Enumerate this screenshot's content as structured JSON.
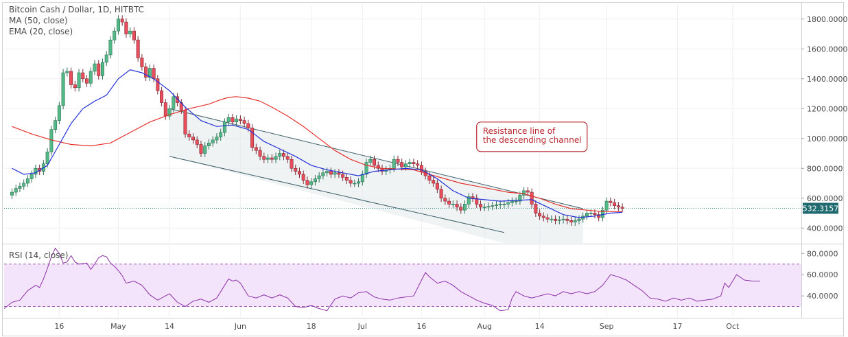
{
  "chart_data": [
    {
      "type": "candlestick",
      "title": "Bitcoin Cash / Dollar, 1D, HITBTC",
      "indicators": [
        "MA (50, close)",
        "EMA (20, close)"
      ],
      "ylim": [
        300,
        1900
      ],
      "yticks": [
        "1800.0000",
        "1600.0000",
        "1400.0000",
        "1200.0000",
        "1000.0000",
        "800.0000",
        "600.0000",
        "400.0000"
      ],
      "ytick_values": [
        1800,
        1600,
        1400,
        1200,
        1000,
        800,
        600,
        400
      ],
      "last_price_label": "532.3157",
      "last_price": 532.3157,
      "annotation": [
        "Resistance line of",
        "the descending channel"
      ],
      "colors": {
        "up": "#53b987",
        "down": "#eb4d5c",
        "ma50": "#e5312c",
        "ema20": "#2330d6",
        "channel": "#3d5e68",
        "annotation": "#b8292f"
      },
      "xlabels": [
        "16",
        "May",
        "14",
        "Jun",
        "18",
        "Jul",
        "16",
        "Aug",
        "14",
        "Sep",
        "17",
        "Oct"
      ],
      "xlabel_days": [
        14,
        29,
        42,
        60,
        78,
        91,
        106,
        122,
        136,
        153,
        171,
        185
      ],
      "candles": [
        [
          0,
          640
        ],
        [
          1,
          665
        ],
        [
          2,
          680
        ],
        [
          3,
          700
        ],
        [
          4,
          730
        ],
        [
          5,
          760
        ],
        [
          6,
          800
        ],
        [
          7,
          780
        ],
        [
          8,
          830
        ],
        [
          9,
          910
        ],
        [
          10,
          1060
        ],
        [
          11,
          1120
        ],
        [
          12,
          1220
        ],
        [
          13,
          1440
        ],
        [
          14,
          1450
        ],
        [
          15,
          1360
        ],
        [
          16,
          1340
        ],
        [
          17,
          1440
        ],
        [
          18,
          1400
        ],
        [
          19,
          1370
        ],
        [
          20,
          1450
        ],
        [
          21,
          1500
        ],
        [
          22,
          1420
        ],
        [
          23,
          1510
        ],
        [
          24,
          1560
        ],
        [
          25,
          1660
        ],
        [
          26,
          1720
        ],
        [
          27,
          1800
        ],
        [
          28,
          1780
        ],
        [
          29,
          1700
        ],
        [
          30,
          1720
        ],
        [
          31,
          1660
        ],
        [
          32,
          1540
        ],
        [
          33,
          1480
        ],
        [
          34,
          1410
        ],
        [
          35,
          1470
        ],
        [
          36,
          1400
        ],
        [
          37,
          1320
        ],
        [
          38,
          1240
        ],
        [
          39,
          1150
        ],
        [
          40,
          1200
        ],
        [
          41,
          1280
        ],
        [
          42,
          1240
        ],
        [
          43,
          1190
        ],
        [
          44,
          1030
        ],
        [
          45,
          1010
        ],
        [
          46,
          990
        ],
        [
          47,
          960
        ],
        [
          48,
          900
        ],
        [
          49,
          950
        ],
        [
          50,
          970
        ],
        [
          51,
          990
        ],
        [
          52,
          1010
        ],
        [
          53,
          1040
        ],
        [
          54,
          1110
        ],
        [
          55,
          1140
        ],
        [
          56,
          1110
        ],
        [
          57,
          1130
        ],
        [
          58,
          1120
        ],
        [
          59,
          1100
        ],
        [
          60,
          1070
        ],
        [
          61,
          940
        ],
        [
          62,
          920
        ],
        [
          63,
          880
        ],
        [
          64,
          860
        ],
        [
          65,
          870
        ],
        [
          66,
          860
        ],
        [
          67,
          880
        ],
        [
          68,
          900
        ],
        [
          69,
          880
        ],
        [
          70,
          860
        ],
        [
          71,
          800
        ],
        [
          72,
          780
        ],
        [
          73,
          760
        ],
        [
          74,
          720
        ],
        [
          75,
          690
        ],
        [
          76,
          710
        ],
        [
          77,
          730
        ],
        [
          78,
          750
        ],
        [
          79,
          770
        ],
        [
          80,
          780
        ],
        [
          81,
          760
        ],
        [
          82,
          770
        ],
        [
          83,
          760
        ],
        [
          84,
          740
        ],
        [
          85,
          720
        ],
        [
          86,
          700
        ],
        [
          87,
          700
        ],
        [
          88,
          710
        ],
        [
          89,
          760
        ],
        [
          90,
          840
        ],
        [
          91,
          860
        ],
        [
          92,
          820
        ],
        [
          93,
          800
        ],
        [
          94,
          780
        ],
        [
          95,
          790
        ],
        [
          96,
          800
        ],
        [
          97,
          860
        ],
        [
          98,
          840
        ],
        [
          99,
          810
        ],
        [
          100,
          830
        ],
        [
          101,
          840
        ],
        [
          102,
          830
        ],
        [
          103,
          820
        ],
        [
          104,
          780
        ],
        [
          105,
          750
        ],
        [
          106,
          720
        ],
        [
          107,
          700
        ],
        [
          108,
          660
        ],
        [
          109,
          600
        ],
        [
          110,
          580
        ],
        [
          111,
          560
        ],
        [
          112,
          560
        ],
        [
          113,
          540
        ],
        [
          114,
          520
        ],
        [
          115,
          560
        ],
        [
          116,
          610
        ],
        [
          117,
          600
        ],
        [
          118,
          560
        ],
        [
          119,
          540
        ],
        [
          120,
          540
        ],
        [
          121,
          545
        ],
        [
          122,
          550
        ],
        [
          123,
          555
        ],
        [
          124,
          560
        ],
        [
          125,
          560
        ],
        [
          126,
          570
        ],
        [
          127,
          580
        ],
        [
          128,
          580
        ],
        [
          129,
          620
        ],
        [
          130,
          650
        ],
        [
          131,
          640
        ],
        [
          132,
          560
        ],
        [
          133,
          500
        ],
        [
          134,
          480
        ],
        [
          135,
          470
        ],
        [
          136,
          460
        ],
        [
          137,
          460
        ],
        [
          138,
          450
        ],
        [
          139,
          455
        ],
        [
          140,
          460
        ],
        [
          141,
          450
        ],
        [
          142,
          440
        ],
        [
          143,
          450
        ],
        [
          144,
          460
        ],
        [
          145,
          480
        ],
        [
          146,
          500
        ],
        [
          147,
          500
        ],
        [
          148,
          490
        ],
        [
          149,
          470
        ],
        [
          150,
          520
        ],
        [
          151,
          580
        ],
        [
          152,
          570
        ],
        [
          153,
          550
        ],
        [
          154,
          540
        ],
        [
          155,
          532
        ]
      ],
      "ma50": [
        [
          0,
          1080
        ],
        [
          5,
          1030
        ],
        [
          10,
          990
        ],
        [
          15,
          960
        ],
        [
          20,
          950
        ],
        [
          25,
          970
        ],
        [
          30,
          1040
        ],
        [
          35,
          1110
        ],
        [
          40,
          1160
        ],
        [
          45,
          1200
        ],
        [
          50,
          1230
        ],
        [
          53,
          1260
        ],
        [
          55,
          1275
        ],
        [
          57,
          1280
        ],
        [
          60,
          1270
        ],
        [
          63,
          1250
        ],
        [
          66,
          1210
        ],
        [
          70,
          1150
        ],
        [
          74,
          1080
        ],
        [
          78,
          1000
        ],
        [
          82,
          920
        ],
        [
          86,
          860
        ],
        [
          90,
          820
        ],
        [
          94,
          800
        ],
        [
          98,
          795
        ],
        [
          102,
          790
        ],
        [
          106,
          760
        ],
        [
          110,
          730
        ],
        [
          114,
          700
        ],
        [
          118,
          680
        ],
        [
          122,
          660
        ],
        [
          126,
          640
        ],
        [
          130,
          630
        ],
        [
          134,
          600
        ],
        [
          138,
          560
        ],
        [
          142,
          530
        ],
        [
          146,
          520
        ],
        [
          150,
          510
        ],
        [
          155,
          510
        ]
      ],
      "ema20": [
        [
          0,
          800
        ],
        [
          3,
          760
        ],
        [
          6,
          770
        ],
        [
          9,
          820
        ],
        [
          12,
          960
        ],
        [
          15,
          1100
        ],
        [
          18,
          1200
        ],
        [
          21,
          1250
        ],
        [
          24,
          1290
        ],
        [
          27,
          1400
        ],
        [
          30,
          1460
        ],
        [
          33,
          1440
        ],
        [
          36,
          1400
        ],
        [
          40,
          1320
        ],
        [
          44,
          1210
        ],
        [
          48,
          1120
        ],
        [
          52,
          1080
        ],
        [
          56,
          1090
        ],
        [
          60,
          1060
        ],
        [
          64,
          980
        ],
        [
          68,
          930
        ],
        [
          72,
          880
        ],
        [
          76,
          820
        ],
        [
          80,
          790
        ],
        [
          84,
          770
        ],
        [
          88,
          750
        ],
        [
          92,
          780
        ],
        [
          96,
          790
        ],
        [
          100,
          800
        ],
        [
          104,
          790
        ],
        [
          108,
          730
        ],
        [
          112,
          650
        ],
        [
          116,
          600
        ],
        [
          120,
          590
        ],
        [
          124,
          580
        ],
        [
          128,
          585
        ],
        [
          132,
          590
        ],
        [
          136,
          540
        ],
        [
          140,
          490
        ],
        [
          144,
          470
        ],
        [
          148,
          480
        ],
        [
          152,
          500
        ],
        [
          155,
          505
        ]
      ],
      "channel_upper": [
        [
          40,
          1200
        ],
        [
          145,
          530
        ]
      ],
      "channel_lower": [
        [
          40,
          880
        ],
        [
          125,
          370
        ]
      ],
      "annotation_time": 118,
      "annotation_price": 1110
    },
    {
      "type": "line",
      "title": "RSI (14, close)",
      "ylim": [
        20,
        88
      ],
      "yticks": [
        "80.0000",
        "60.0000",
        "40.0000"
      ],
      "ytick_values": [
        80,
        60,
        40
      ],
      "band": [
        30,
        70
      ],
      "colors": {
        "line": "#8b2fa6",
        "band": "#f4e4fb",
        "bandline": "#9a5fb0"
      },
      "values": [
        [
          0,
          28
        ],
        [
          2,
          34
        ],
        [
          4,
          36
        ],
        [
          6,
          45
        ],
        [
          8,
          50
        ],
        [
          9,
          48
        ],
        [
          10,
          56
        ],
        [
          11,
          66
        ],
        [
          12,
          77
        ],
        [
          13,
          85
        ],
        [
          14,
          80
        ],
        [
          15,
          71
        ],
        [
          16,
          72
        ],
        [
          17,
          78
        ],
        [
          18,
          72
        ],
        [
          19,
          70
        ],
        [
          21,
          71
        ],
        [
          22,
          65
        ],
        [
          23,
          70
        ],
        [
          24,
          76
        ],
        [
          25,
          78
        ],
        [
          26,
          77
        ],
        [
          27,
          71
        ],
        [
          28,
          68
        ],
        [
          29,
          64
        ],
        [
          30,
          59
        ],
        [
          31,
          52
        ],
        [
          33,
          54
        ],
        [
          35,
          50
        ],
        [
          37,
          41
        ],
        [
          39,
          36
        ],
        [
          41,
          40
        ],
        [
          42,
          42
        ],
        [
          44,
          34
        ],
        [
          46,
          30
        ],
        [
          48,
          35
        ],
        [
          50,
          37
        ],
        [
          52,
          34
        ],
        [
          54,
          38
        ],
        [
          56,
          50
        ],
        [
          57,
          56
        ],
        [
          58,
          54
        ],
        [
          59,
          55
        ],
        [
          60,
          52
        ],
        [
          62,
          40
        ],
        [
          64,
          38
        ],
        [
          66,
          41
        ],
        [
          68,
          38
        ],
        [
          70,
          41
        ],
        [
          72,
          38
        ],
        [
          74,
          30
        ],
        [
          76,
          29
        ],
        [
          78,
          31
        ],
        [
          80,
          28
        ],
        [
          82,
          26
        ],
        [
          84,
          37
        ],
        [
          86,
          40
        ],
        [
          88,
          38
        ],
        [
          90,
          43
        ],
        [
          92,
          44
        ],
        [
          94,
          39
        ],
        [
          96,
          37
        ],
        [
          98,
          36
        ],
        [
          100,
          38
        ],
        [
          104,
          40
        ],
        [
          106,
          55
        ],
        [
          107,
          62
        ],
        [
          108,
          58
        ],
        [
          110,
          52
        ],
        [
          112,
          54
        ],
        [
          114,
          50
        ],
        [
          116,
          44
        ],
        [
          118,
          40
        ],
        [
          120,
          36
        ],
        [
          122,
          33
        ],
        [
          124,
          31
        ],
        [
          126,
          26
        ],
        [
          128,
          27
        ],
        [
          129,
          38
        ],
        [
          130,
          44
        ],
        [
          132,
          40
        ],
        [
          134,
          38
        ],
        [
          136,
          40
        ],
        [
          138,
          42
        ],
        [
          140,
          40
        ],
        [
          142,
          44
        ],
        [
          144,
          42
        ],
        [
          146,
          44
        ],
        [
          148,
          42
        ],
        [
          150,
          44
        ],
        [
          152,
          50
        ],
        [
          153,
          55
        ],
        [
          154,
          60
        ],
        [
          156,
          58
        ],
        [
          158,
          55
        ],
        [
          160,
          50
        ],
        [
          162,
          45
        ],
        [
          164,
          38
        ],
        [
          166,
          37
        ],
        [
          168,
          35
        ],
        [
          170,
          38
        ],
        [
          172,
          36
        ],
        [
          174,
          38
        ],
        [
          176,
          35
        ],
        [
          178,
          36
        ],
        [
          180,
          37
        ],
        [
          182,
          40
        ],
        [
          183,
          52
        ],
        [
          184,
          48
        ],
        [
          186,
          60
        ],
        [
          188,
          55
        ],
        [
          190,
          54
        ],
        [
          192,
          54
        ]
      ]
    }
  ]
}
